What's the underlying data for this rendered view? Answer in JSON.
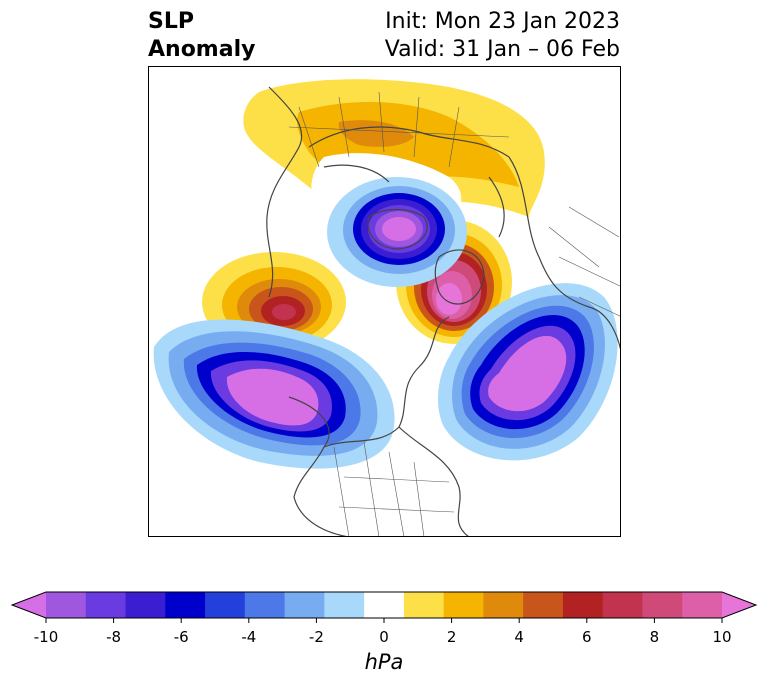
{
  "header": {
    "title_line1": "SLP",
    "title_line2": "Anomaly",
    "init": "Init: Mon 23 Jan 2023",
    "valid": "Valid: 31 Jan – 06 Feb"
  },
  "colorbar": {
    "units": "hPa",
    "ticks": [
      "-10",
      "-8",
      "-6",
      "-4",
      "-2",
      "0",
      "2",
      "4",
      "6",
      "8",
      "10"
    ],
    "levels": [
      -10,
      -9,
      -8,
      -7,
      -6,
      -5,
      -4,
      -3,
      -2,
      -1,
      1,
      2,
      3,
      4,
      5,
      6,
      7,
      8,
      9,
      10
    ],
    "colors": [
      "#d66ee6",
      "#a057e0",
      "#6a3be0",
      "#3b1ed2",
      "#0000cd",
      "#2440dc",
      "#4c78e8",
      "#78acf0",
      "#a9d9fa",
      "#ffffff",
      "#fde047",
      "#f4b400",
      "#e08a0c",
      "#c8551a",
      "#b22222",
      "#c2334f",
      "#cf4a78",
      "#dc5fa8",
      "#e774d9"
    ]
  },
  "map": {
    "anomalies": [
      {
        "name": "low-north-pacific",
        "value": -10
      },
      {
        "name": "low-north-atlantic",
        "value": -10
      },
      {
        "name": "low-hudson-greenland",
        "value": -9
      },
      {
        "name": "high-siberia-arctic",
        "value": 10
      },
      {
        "name": "high-east-asia",
        "value": 8
      },
      {
        "name": "high-eurasia",
        "value": 3
      }
    ]
  }
}
